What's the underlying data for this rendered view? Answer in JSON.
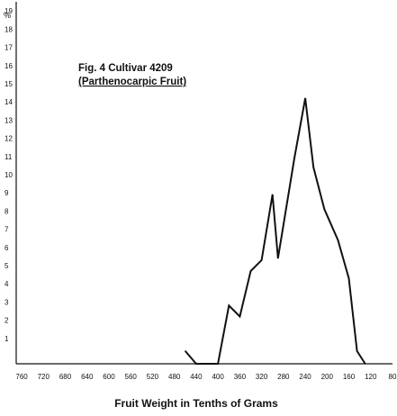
{
  "chart_data": {
    "type": "line",
    "title": "Fig. 4   Cultivar 4209",
    "subtitle": "(Parthenocarpic Fruit)",
    "xlabel": "Fruit Weight in Tenths of Grams",
    "ylabel": "%",
    "x_reversed": true,
    "xlim": [
      770,
      80
    ],
    "ylim": [
      0,
      20
    ],
    "x_ticks": [
      760,
      720,
      680,
      640,
      600,
      560,
      520,
      480,
      440,
      400,
      360,
      320,
      280,
      240,
      200,
      160,
      120,
      80
    ],
    "x_tick_labels": [
      "760",
      "720",
      "680",
      "640",
      "600",
      "560",
      "520",
      "480",
      "440",
      "400",
      "360",
      "320",
      "280",
      "240",
      "200",
      "160",
      "120",
      "80"
    ],
    "y_ticks": [
      1,
      2,
      3,
      4,
      5,
      6,
      7,
      8,
      9,
      10,
      11,
      12,
      13,
      14,
      15,
      16,
      17,
      18,
      19
    ],
    "y_tick_labels": [
      "1",
      "2",
      "3",
      "4",
      "5",
      "6",
      "7",
      "8",
      "9",
      "10",
      "11",
      "12",
      "13",
      "14",
      "15",
      "16",
      "17",
      "18",
      "19"
    ],
    "grid": false,
    "series": [
      {
        "color": "#111111",
        "points": [
          [
            460,
            0.7
          ],
          [
            440,
            0.0
          ],
          [
            400,
            0.0
          ],
          [
            380,
            3.2
          ],
          [
            360,
            2.6
          ],
          [
            340,
            5.1
          ],
          [
            320,
            5.7
          ],
          [
            300,
            9.3
          ],
          [
            290,
            5.8
          ],
          [
            260,
            11.3
          ],
          [
            240,
            14.6
          ],
          [
            225,
            10.8
          ],
          [
            205,
            8.5
          ],
          [
            180,
            6.8
          ],
          [
            160,
            4.7
          ],
          [
            145,
            0.7
          ],
          [
            130,
            0.0
          ]
        ]
      }
    ]
  }
}
